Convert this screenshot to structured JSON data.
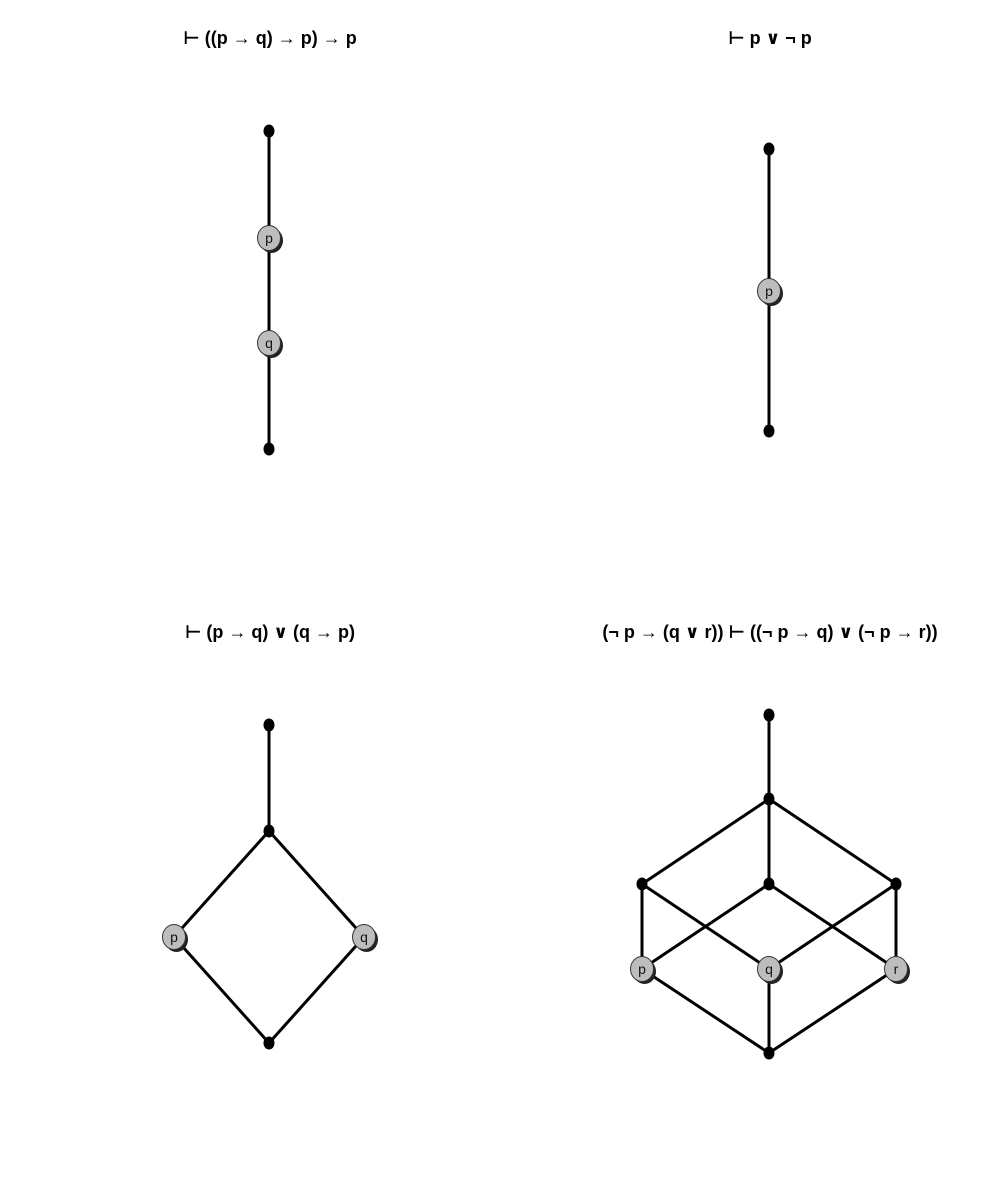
{
  "panels": [
    {
      "title": "⊢ ((p → q) → p) → p",
      "nodes": [
        {
          "id": "top"
        },
        {
          "id": "p",
          "label": "p"
        },
        {
          "id": "q",
          "label": "q"
        },
        {
          "id": "bottom"
        }
      ],
      "edges": [
        [
          "top",
          "p"
        ],
        [
          "p",
          "q"
        ],
        [
          "q",
          "bottom"
        ]
      ]
    },
    {
      "title": "⊢ p ∨ ¬ p",
      "nodes": [
        {
          "id": "top"
        },
        {
          "id": "p",
          "label": "p"
        },
        {
          "id": "bottom"
        }
      ],
      "edges": [
        [
          "top",
          "p"
        ],
        [
          "p",
          "bottom"
        ]
      ]
    },
    {
      "title": "⊢ (p → q) ∨ (q → p)",
      "nodes": [
        {
          "id": "top"
        },
        {
          "id": "mid"
        },
        {
          "id": "p",
          "label": "p"
        },
        {
          "id": "q",
          "label": "q"
        },
        {
          "id": "bottom"
        }
      ],
      "edges": [
        [
          "top",
          "mid"
        ],
        [
          "mid",
          "p"
        ],
        [
          "mid",
          "q"
        ],
        [
          "p",
          "bottom"
        ],
        [
          "q",
          "bottom"
        ]
      ]
    },
    {
      "title": "(¬ p → (q ∨ r)) ⊢ ((¬ p → q) ∨ (¬ p → r))",
      "nodes": [
        {
          "id": "top"
        },
        {
          "id": "hub"
        },
        {
          "id": "a"
        },
        {
          "id": "b"
        },
        {
          "id": "c"
        },
        {
          "id": "p",
          "label": "p"
        },
        {
          "id": "q",
          "label": "q"
        },
        {
          "id": "r",
          "label": "r"
        },
        {
          "id": "bottom"
        }
      ],
      "edges": [
        [
          "top",
          "hub"
        ],
        [
          "hub",
          "a"
        ],
        [
          "hub",
          "b"
        ],
        [
          "hub",
          "c"
        ],
        [
          "a",
          "p"
        ],
        [
          "a",
          "q"
        ],
        [
          "b",
          "p"
        ],
        [
          "b",
          "r"
        ],
        [
          "c",
          "q"
        ],
        [
          "c",
          "r"
        ],
        [
          "p",
          "bottom"
        ],
        [
          "q",
          "bottom"
        ],
        [
          "r",
          "bottom"
        ]
      ]
    }
  ]
}
